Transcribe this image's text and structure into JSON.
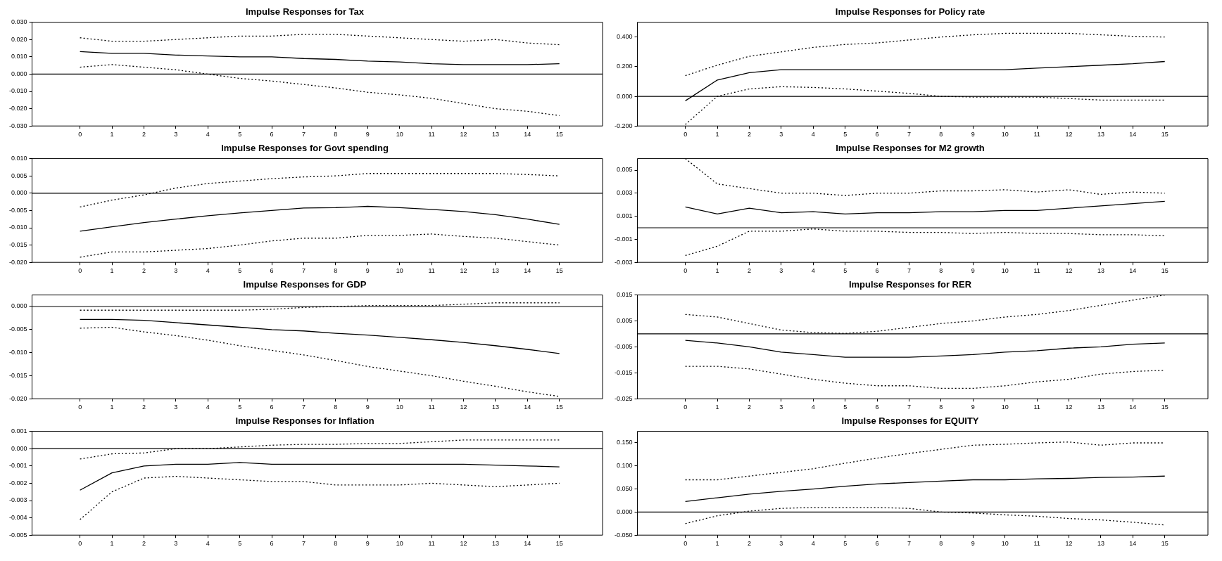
{
  "chart_data": [
    {
      "type": "line",
      "title": "Impulse Responses for Tax",
      "x": [
        0,
        1,
        2,
        3,
        4,
        5,
        6,
        7,
        8,
        9,
        10,
        11,
        12,
        13,
        14,
        15
      ],
      "xlim": [
        -1.5,
        16.35
      ],
      "xticks": [
        0,
        1,
        2,
        3,
        4,
        5,
        6,
        7,
        8,
        9,
        10,
        11,
        12,
        13,
        14,
        15
      ],
      "ylim": [
        -0.03,
        0.03
      ],
      "yticks": [
        {
          "value": -0.03,
          "label": "-0.030"
        },
        {
          "value": -0.02,
          "label": "-0.020"
        },
        {
          "value": -0.01,
          "label": "-0.010"
        },
        {
          "value": 0,
          "label": "0.000"
        },
        {
          "value": 0.01,
          "label": "0.010"
        },
        {
          "value": 0.02,
          "label": "0.020"
        },
        {
          "value": 0.03,
          "label": "0.030"
        }
      ],
      "ref_lines": [
        {
          "axis": "y",
          "value": 0,
          "color": "#000000"
        }
      ],
      "series": [
        {
          "color": "#000000",
          "line_style": "solid",
          "values": [
            0.013,
            0.012,
            0.012,
            0.011,
            0.0105,
            0.01,
            0.01,
            0.009,
            0.0085,
            0.0075,
            0.007,
            0.006,
            0.0055,
            0.0055,
            0.0055,
            0.006
          ]
        },
        {
          "color": "#000000",
          "line_style": "dotted",
          "values": [
            0.021,
            0.019,
            0.019,
            0.02,
            0.021,
            0.022,
            0.022,
            0.023,
            0.023,
            0.022,
            0.021,
            0.02,
            0.019,
            0.02,
            0.018,
            0.017
          ]
        },
        {
          "color": "#000000",
          "line_style": "dotted",
          "values": [
            0.004,
            0.0055,
            0.004,
            0.0025,
            0.0,
            -0.0025,
            -0.004,
            -0.006,
            -0.008,
            -0.0105,
            -0.012,
            -0.014,
            -0.017,
            -0.02,
            -0.0215,
            -0.024
          ]
        }
      ]
    },
    {
      "type": "line",
      "title": "Impulse Responses for Policy rate",
      "x": [
        0,
        1,
        2,
        3,
        4,
        5,
        6,
        7,
        8,
        9,
        10,
        11,
        12,
        13,
        14,
        15
      ],
      "xlim": [
        -1.5,
        16.35
      ],
      "xticks": [
        0,
        1,
        2,
        3,
        4,
        5,
        6,
        7,
        8,
        9,
        10,
        11,
        12,
        13,
        14,
        15
      ],
      "ylim": [
        -0.2,
        0.5
      ],
      "yticks": [
        {
          "value": -0.2,
          "label": "-0.200"
        },
        {
          "value": 0,
          "label": "0.000"
        },
        {
          "value": 0.2,
          "label": "0.200"
        },
        {
          "value": 0.4,
          "label": "0.400"
        }
      ],
      "ref_lines": [
        {
          "axis": "y",
          "value": 0,
          "color": "#000000"
        }
      ],
      "series": [
        {
          "color": "#000000",
          "line_style": "solid",
          "values": [
            -0.03,
            0.11,
            0.16,
            0.18,
            0.18,
            0.18,
            0.18,
            0.18,
            0.18,
            0.18,
            0.18,
            0.19,
            0.2,
            0.21,
            0.22,
            0.235
          ]
        },
        {
          "color": "#000000",
          "line_style": "dotted",
          "values": [
            0.14,
            0.21,
            0.27,
            0.3,
            0.33,
            0.35,
            0.36,
            0.38,
            0.4,
            0.415,
            0.425,
            0.425,
            0.425,
            0.415,
            0.405,
            0.4
          ]
        },
        {
          "color": "#000000",
          "line_style": "dotted",
          "values": [
            -0.19,
            0.0,
            0.05,
            0.065,
            0.06,
            0.05,
            0.035,
            0.02,
            0.0,
            -0.005,
            -0.005,
            -0.005,
            -0.015,
            -0.025,
            -0.025,
            -0.025
          ]
        }
      ]
    },
    {
      "type": "line",
      "title": "Impulse Responses for Govt spending",
      "x": [
        0,
        1,
        2,
        3,
        4,
        5,
        6,
        7,
        8,
        9,
        10,
        11,
        12,
        13,
        14,
        15
      ],
      "xlim": [
        -1.5,
        16.35
      ],
      "xticks": [
        0,
        1,
        2,
        3,
        4,
        5,
        6,
        7,
        8,
        9,
        10,
        11,
        12,
        13,
        14,
        15
      ],
      "ylim": [
        -0.02,
        0.01
      ],
      "yticks": [
        {
          "value": -0.02,
          "label": "-0.020"
        },
        {
          "value": -0.015,
          "label": "-0.015"
        },
        {
          "value": -0.01,
          "label": "-0.010"
        },
        {
          "value": -0.005,
          "label": "-0.005"
        },
        {
          "value": 0,
          "label": "0.000"
        },
        {
          "value": 0.005,
          "label": "0.005"
        },
        {
          "value": 0.01,
          "label": "0.010"
        }
      ],
      "ref_lines": [
        {
          "axis": "y",
          "value": 0,
          "color": "#000000"
        }
      ],
      "series": [
        {
          "color": "#000000",
          "line_style": "solid",
          "values": [
            -0.011,
            -0.0097,
            -0.0085,
            -0.0075,
            -0.0065,
            -0.0057,
            -0.005,
            -0.0043,
            -0.0042,
            -0.0038,
            -0.0042,
            -0.0047,
            -0.0053,
            -0.0062,
            -0.0075,
            -0.009
          ]
        },
        {
          "color": "#000000",
          "line_style": "dotted",
          "values": [
            -0.004,
            -0.002,
            -0.0005,
            0.0015,
            0.0028,
            0.0035,
            0.0042,
            0.0047,
            0.005,
            0.0057,
            0.0057,
            0.0057,
            0.0057,
            0.0057,
            0.0054,
            0.005
          ]
        },
        {
          "color": "#000000",
          "line_style": "dotted",
          "values": [
            -0.0185,
            -0.017,
            -0.017,
            -0.0165,
            -0.016,
            -0.015,
            -0.0138,
            -0.013,
            -0.013,
            -0.0122,
            -0.0122,
            -0.0118,
            -0.0125,
            -0.013,
            -0.014,
            -0.015
          ]
        }
      ]
    },
    {
      "type": "line",
      "title": "Impulse Responses for M2 growth",
      "x": [
        0,
        1,
        2,
        3,
        4,
        5,
        6,
        7,
        8,
        9,
        10,
        11,
        12,
        13,
        14,
        15
      ],
      "xlim": [
        -1.5,
        16.35
      ],
      "xticks": [
        0,
        1,
        2,
        3,
        4,
        5,
        6,
        7,
        8,
        9,
        10,
        11,
        12,
        13,
        14,
        15
      ],
      "ylim": [
        -0.003,
        0.006
      ],
      "yticks": [
        {
          "value": -0.003,
          "label": "-0.003"
        },
        {
          "value": -0.001,
          "label": "-0.001"
        },
        {
          "value": 0.001,
          "label": "0.001"
        },
        {
          "value": 0.003,
          "label": "0.003"
        },
        {
          "value": 0.005,
          "label": "0.005"
        }
      ],
      "ref_lines": [
        {
          "axis": "y",
          "value": 0,
          "color": "#000000"
        }
      ],
      "series": [
        {
          "color": "#000000",
          "line_style": "solid",
          "values": [
            0.0018,
            0.0012,
            0.0017,
            0.0013,
            0.0014,
            0.0012,
            0.0013,
            0.0013,
            0.0014,
            0.0014,
            0.0015,
            0.0015,
            0.0017,
            0.0019,
            0.0021,
            0.0023
          ]
        },
        {
          "color": "#000000",
          "line_style": "dotted",
          "values": [
            0.006,
            0.0038,
            0.0034,
            0.003,
            0.003,
            0.0028,
            0.003,
            0.003,
            0.0032,
            0.0032,
            0.0033,
            0.0031,
            0.0033,
            0.0029,
            0.0031,
            0.003
          ]
        },
        {
          "color": "#000000",
          "line_style": "dotted",
          "values": [
            -0.0024,
            -0.0016,
            -0.0003,
            -0.0003,
            -0.0001,
            -0.0003,
            -0.0003,
            -0.0004,
            -0.0004,
            -0.0005,
            -0.0004,
            -0.0005,
            -0.0005,
            -0.0006,
            -0.0006,
            -0.0007
          ]
        }
      ]
    },
    {
      "type": "line",
      "title": "Impulse Responses for GDP",
      "x": [
        0,
        1,
        2,
        3,
        4,
        5,
        6,
        7,
        8,
        9,
        10,
        11,
        12,
        13,
        14,
        15
      ],
      "xlim": [
        -1.5,
        16.35
      ],
      "xticks": [
        0,
        1,
        2,
        3,
        4,
        5,
        6,
        7,
        8,
        9,
        10,
        11,
        12,
        13,
        14,
        15
      ],
      "ylim": [
        -0.02,
        0.0025
      ],
      "yticks": [
        {
          "value": -0.02,
          "label": "-0.020"
        },
        {
          "value": -0.015,
          "label": "-0.015"
        },
        {
          "value": -0.01,
          "label": "-0.010"
        },
        {
          "value": -0.005,
          "label": "-0.005"
        },
        {
          "value": 0,
          "label": "0.000"
        }
      ],
      "ref_lines": [
        {
          "axis": "y",
          "value": 0,
          "color": "#000000"
        }
      ],
      "series": [
        {
          "color": "#000000",
          "line_style": "solid",
          "values": [
            -0.0028,
            -0.0028,
            -0.003,
            -0.0035,
            -0.004,
            -0.0045,
            -0.005,
            -0.0053,
            -0.0058,
            -0.0062,
            -0.0067,
            -0.0072,
            -0.0078,
            -0.0085,
            -0.0093,
            -0.0102
          ]
        },
        {
          "color": "#000000",
          "line_style": "dotted",
          "values": [
            -0.0008,
            -0.0008,
            -0.0008,
            -0.0008,
            -0.0008,
            -0.0008,
            -0.0006,
            -0.0002,
            0.0,
            0.0002,
            0.0002,
            0.0002,
            0.0005,
            0.0008,
            0.0008,
            0.0008
          ]
        },
        {
          "color": "#000000",
          "line_style": "dotted",
          "values": [
            -0.0047,
            -0.0045,
            -0.0055,
            -0.0063,
            -0.0073,
            -0.0085,
            -0.0095,
            -0.0105,
            -0.0117,
            -0.013,
            -0.014,
            -0.015,
            -0.0162,
            -0.0173,
            -0.0185,
            -0.0195
          ]
        }
      ]
    },
    {
      "type": "line",
      "title": "Impulse Responses for RER",
      "x": [
        0,
        1,
        2,
        3,
        4,
        5,
        6,
        7,
        8,
        9,
        10,
        11,
        12,
        13,
        14,
        15
      ],
      "xlim": [
        -1.5,
        16.35
      ],
      "xticks": [
        0,
        1,
        2,
        3,
        4,
        5,
        6,
        7,
        8,
        9,
        10,
        11,
        12,
        13,
        14,
        15
      ],
      "ylim": [
        -0.025,
        0.015
      ],
      "yticks": [
        {
          "value": -0.025,
          "label": "-0.025"
        },
        {
          "value": -0.015,
          "label": "-0.015"
        },
        {
          "value": -0.005,
          "label": "-0.005"
        },
        {
          "value": 0.005,
          "label": "0.005"
        },
        {
          "value": 0.015,
          "label": "0.015"
        }
      ],
      "ref_lines": [
        {
          "axis": "y",
          "value": 0,
          "color": "#000000"
        }
      ],
      "series": [
        {
          "color": "#000000",
          "line_style": "solid",
          "values": [
            -0.0025,
            -0.0035,
            -0.005,
            -0.007,
            -0.008,
            -0.009,
            -0.009,
            -0.009,
            -0.0085,
            -0.008,
            -0.007,
            -0.0065,
            -0.0055,
            -0.005,
            -0.004,
            -0.0035
          ]
        },
        {
          "color": "#000000",
          "line_style": "dotted",
          "values": [
            0.0075,
            0.0065,
            0.004,
            0.0015,
            0.0005,
            0.0002,
            0.001,
            0.0025,
            0.004,
            0.005,
            0.0065,
            0.0075,
            0.009,
            0.011,
            0.013,
            0.015
          ]
        },
        {
          "color": "#000000",
          "line_style": "dotted",
          "values": [
            -0.0125,
            -0.0125,
            -0.0135,
            -0.0155,
            -0.0175,
            -0.019,
            -0.02,
            -0.02,
            -0.021,
            -0.021,
            -0.02,
            -0.0185,
            -0.0175,
            -0.0155,
            -0.0145,
            -0.014
          ]
        }
      ]
    },
    {
      "type": "line",
      "title": "Impulse Responses for Inflation",
      "x": [
        0,
        1,
        2,
        3,
        4,
        5,
        6,
        7,
        8,
        9,
        10,
        11,
        12,
        13,
        14,
        15
      ],
      "xlim": [
        -1.5,
        16.35
      ],
      "xticks": [
        0,
        1,
        2,
        3,
        4,
        5,
        6,
        7,
        8,
        9,
        10,
        11,
        12,
        13,
        14,
        15
      ],
      "ylim": [
        -0.005,
        0.001
      ],
      "yticks": [
        {
          "value": -0.005,
          "label": "-0.005"
        },
        {
          "value": -0.004,
          "label": "-0.004"
        },
        {
          "value": -0.003,
          "label": "-0.003"
        },
        {
          "value": -0.002,
          "label": "-0.002"
        },
        {
          "value": -0.001,
          "label": "-0.001"
        },
        {
          "value": 0,
          "label": "0.000"
        },
        {
          "value": 0.001,
          "label": "0.001"
        }
      ],
      "ref_lines": [
        {
          "axis": "y",
          "value": 0,
          "color": "#000000"
        }
      ],
      "series": [
        {
          "color": "#000000",
          "line_style": "solid",
          "values": [
            -0.0024,
            -0.0014,
            -0.001,
            -0.0009,
            -0.0009,
            -0.0008,
            -0.0009,
            -0.0009,
            -0.0009,
            -0.0009,
            -0.0009,
            -0.0009,
            -0.0009,
            -0.00095,
            -0.001,
            -0.00105
          ]
        },
        {
          "color": "#000000",
          "line_style": "dotted",
          "values": [
            -0.0006,
            -0.0003,
            -0.00025,
            0.0,
            0.0,
            0.0001,
            0.0002,
            0.00025,
            0.00025,
            0.0003,
            0.0003,
            0.0004,
            0.0005,
            0.0005,
            0.0005,
            0.0005
          ]
        },
        {
          "color": "#000000",
          "line_style": "dotted",
          "values": [
            -0.0041,
            -0.0025,
            -0.0017,
            -0.0016,
            -0.0017,
            -0.0018,
            -0.0019,
            -0.0019,
            -0.0021,
            -0.0021,
            -0.0021,
            -0.002,
            -0.0021,
            -0.0022,
            -0.0021,
            -0.002
          ]
        }
      ]
    },
    {
      "type": "line",
      "title": "Impulse Responses for EQUITY",
      "x": [
        0,
        1,
        2,
        3,
        4,
        5,
        6,
        7,
        8,
        9,
        10,
        11,
        12,
        13,
        14,
        15
      ],
      "xlim": [
        -1.5,
        16.35
      ],
      "xticks": [
        0,
        1,
        2,
        3,
        4,
        5,
        6,
        7,
        8,
        9,
        10,
        11,
        12,
        13,
        14,
        15
      ],
      "ylim": [
        -0.05,
        0.175
      ],
      "yticks": [
        {
          "value": -0.05,
          "label": "-0.050"
        },
        {
          "value": 0,
          "label": "0.000"
        },
        {
          "value": 0.05,
          "label": "0.050"
        },
        {
          "value": 0.1,
          "label": "0.100"
        },
        {
          "value": 0.15,
          "label": "0.150"
        }
      ],
      "ref_lines": [
        {
          "axis": "y",
          "value": 0,
          "color": "#000000"
        }
      ],
      "series": [
        {
          "color": "#000000",
          "line_style": "solid",
          "values": [
            0.023,
            0.031,
            0.039,
            0.045,
            0.05,
            0.056,
            0.061,
            0.064,
            0.067,
            0.07,
            0.07,
            0.072,
            0.073,
            0.075,
            0.076,
            0.078
          ]
        },
        {
          "color": "#000000",
          "line_style": "dotted",
          "values": [
            0.07,
            0.07,
            0.078,
            0.086,
            0.094,
            0.106,
            0.117,
            0.127,
            0.136,
            0.145,
            0.147,
            0.15,
            0.152,
            0.145,
            0.15,
            0.15
          ]
        },
        {
          "color": "#000000",
          "line_style": "dotted",
          "values": [
            -0.025,
            -0.008,
            0.002,
            0.008,
            0.01,
            0.01,
            0.01,
            0.008,
            0.0,
            -0.002,
            -0.006,
            -0.009,
            -0.014,
            -0.017,
            -0.022,
            -0.028
          ]
        }
      ]
    }
  ]
}
